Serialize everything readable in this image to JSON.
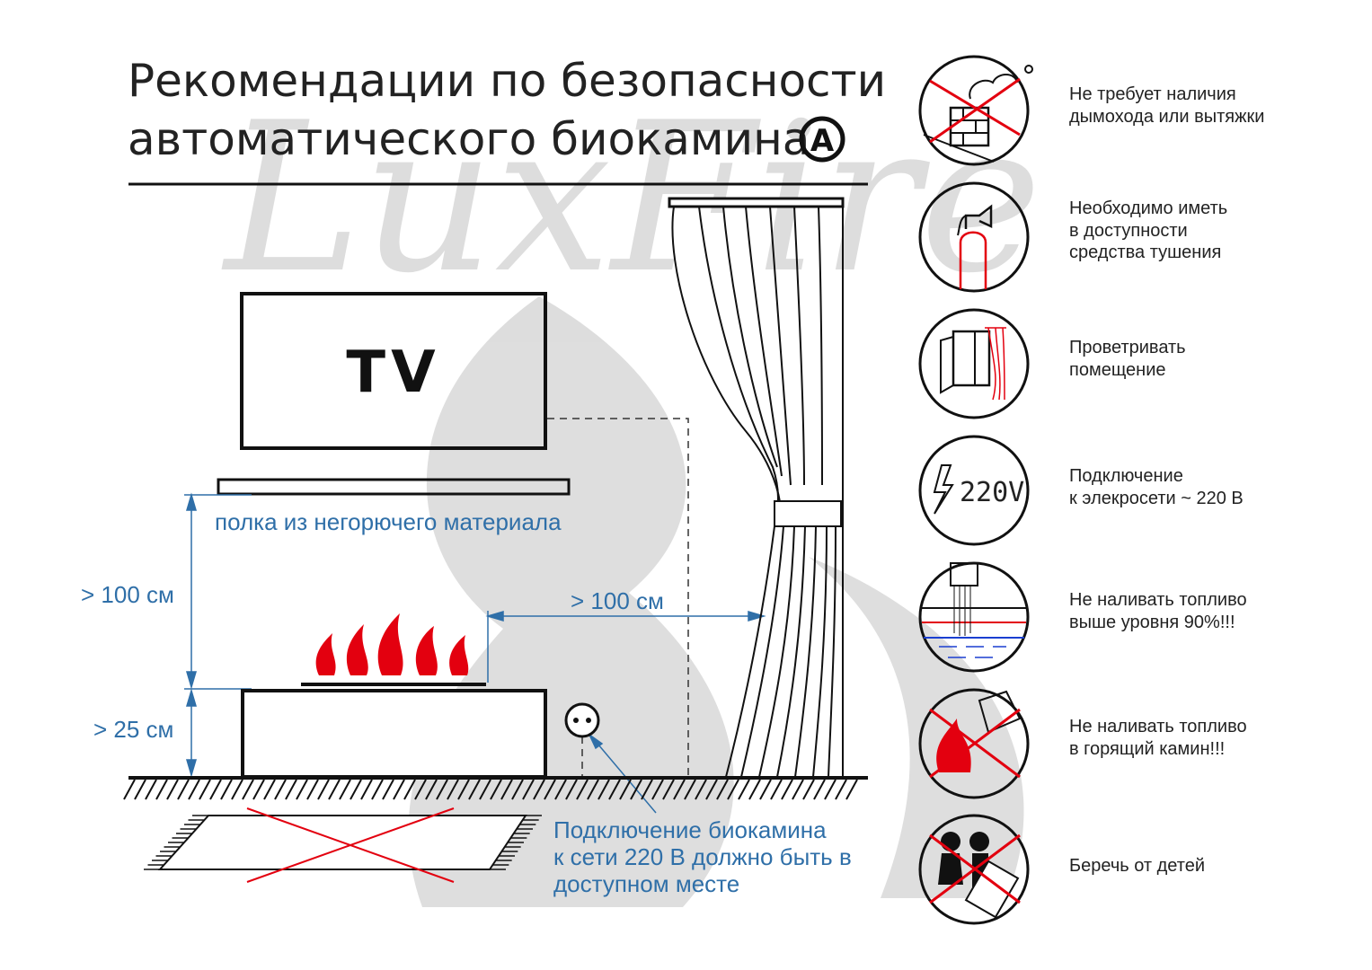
{
  "header": {
    "title_line1": "Рекомендации по безопасности",
    "title_line2": "автоматического биокамина",
    "badge": "A"
  },
  "watermark": "LuxFire",
  "diagram": {
    "tv_label": "TV",
    "shelf_label": "полка из негорючего материала",
    "height_above_label": "> 100 см",
    "height_base_label": "> 25 см",
    "distance_curtain_label": "> 100 см",
    "socket_note": [
      "Подключение биокамина",
      "к сети 220 В должно быть в",
      "доступном месте"
    ]
  },
  "colors": {
    "accent_blue": "#2f6fa8",
    "warning_red": "#e3000f",
    "line": "#111111"
  },
  "rules": [
    {
      "icon": "no-chimney-icon",
      "lines": [
        "Не требует наличия",
        "дымохода или вытяжки"
      ]
    },
    {
      "icon": "fire-extinguisher-icon",
      "lines": [
        "Необходимо иметь",
        "в доступности",
        "средства тушения"
      ]
    },
    {
      "icon": "open-window-icon",
      "lines": [
        "Проветривать",
        "помещение"
      ]
    },
    {
      "icon": "voltage-220v-icon",
      "icon_text": "220V",
      "lines": [
        "Подключение",
        "к элекросети ~ 220 В"
      ]
    },
    {
      "icon": "fuel-level-icon",
      "lines": [
        "Не наливать топливо",
        "выше уровня 90%!!!"
      ]
    },
    {
      "icon": "no-refuel-burning-icon",
      "lines": [
        "Не наливать топливо",
        "в горящий камин!!!"
      ]
    },
    {
      "icon": "keep-from-children-icon",
      "lines": [
        "Беречь от детей"
      ]
    }
  ]
}
